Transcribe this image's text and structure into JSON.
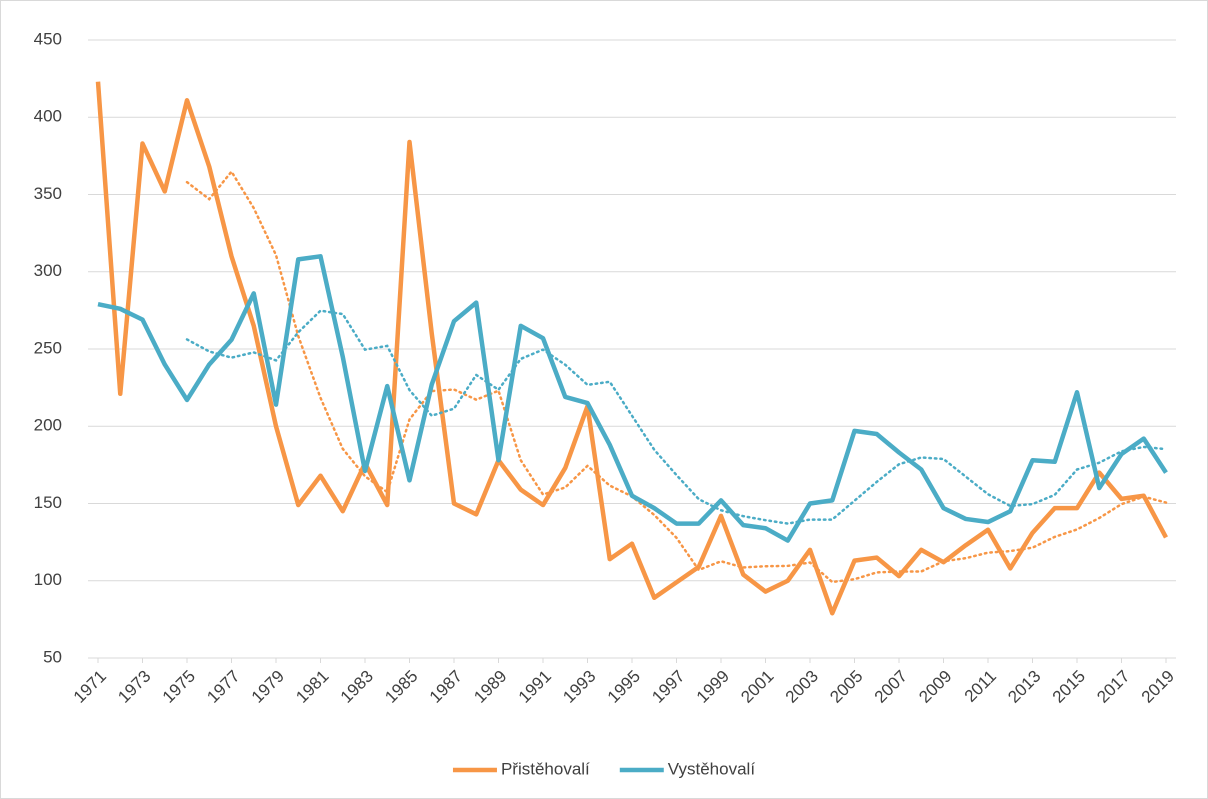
{
  "chart_data": {
    "type": "line",
    "x": [
      1971,
      1972,
      1973,
      1974,
      1975,
      1976,
      1977,
      1978,
      1979,
      1980,
      1981,
      1982,
      1983,
      1984,
      1985,
      1986,
      1987,
      1988,
      1989,
      1990,
      1991,
      1992,
      1993,
      1994,
      1995,
      1996,
      1997,
      1998,
      1999,
      2000,
      2001,
      2002,
      2003,
      2004,
      2005,
      2006,
      2007,
      2008,
      2009,
      2010,
      2011,
      2012,
      2013,
      2014,
      2015,
      2016,
      2017,
      2018,
      2019
    ],
    "series": [
      {
        "name": "Přistěhovalí",
        "color": "#f79646",
        "trendline_period": 5,
        "values": [
          423,
          221,
          383,
          352,
          411,
          368,
          310,
          265,
          200,
          149,
          168,
          145,
          176,
          149,
          384,
          260,
          150,
          143,
          178,
          159,
          149,
          173,
          213,
          114,
          124,
          89,
          99,
          109,
          142,
          104,
          93,
          100,
          120,
          79,
          113,
          115,
          103,
          120,
          112,
          123,
          133,
          108,
          131,
          147,
          147,
          170,
          153,
          155,
          128
        ]
      },
      {
        "name": "Vystěhovalí",
        "color": "#4bacc6",
        "trendline_period": 5,
        "values": [
          279,
          276,
          269,
          240,
          217,
          240,
          256,
          286,
          214,
          308,
          310,
          245,
          171,
          226,
          165,
          227,
          268,
          280,
          178,
          265,
          257,
          219,
          215,
          188,
          155,
          147,
          137,
          137,
          152,
          136,
          134,
          126,
          150,
          152,
          197,
          195,
          183,
          172,
          147,
          140,
          138,
          145,
          178,
          177,
          222,
          160,
          182,
          192,
          170
        ]
      }
    ],
    "xlim": [
      1971,
      2019
    ],
    "xticks": [
      1971,
      1973,
      1975,
      1977,
      1979,
      1981,
      1983,
      1985,
      1987,
      1989,
      1991,
      1993,
      1995,
      1997,
      1999,
      2001,
      2003,
      2005,
      2007,
      2009,
      2011,
      2013,
      2015,
      2017,
      2019
    ],
    "ylim": [
      50,
      450
    ],
    "yticks": [
      50,
      100,
      150,
      200,
      250,
      300,
      350,
      400,
      450
    ],
    "grid": true,
    "legend": "bottom"
  }
}
